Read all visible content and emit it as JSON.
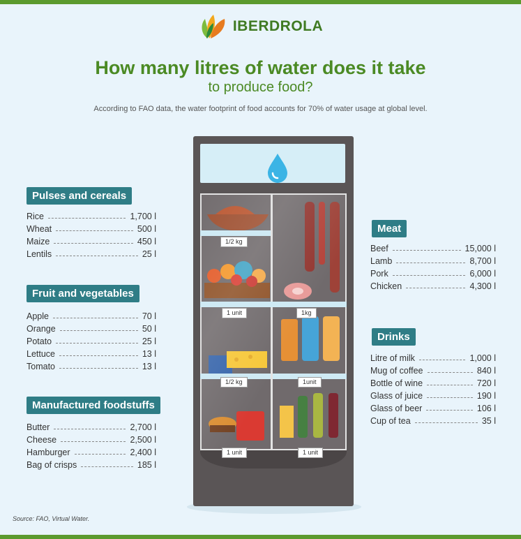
{
  "brand": {
    "name": "IBERDROLA"
  },
  "header": {
    "title": "How many litres of water does it take",
    "subtitle": "to produce food?",
    "intro": "According to FAO data, the water footprint of food accounts for 70% of water usage at global level."
  },
  "categories": {
    "pulses": {
      "title": "Pulses and cereals",
      "items": [
        {
          "label": "Rice",
          "value": "1,700 l"
        },
        {
          "label": "Wheat",
          "value": "500 l"
        },
        {
          "label": "Maize",
          "value": "450 l"
        },
        {
          "label": "Lentils",
          "value": "25 l"
        }
      ]
    },
    "fruit": {
      "title": "Fruit and vegetables",
      "items": [
        {
          "label": "Apple",
          "value": "70 l"
        },
        {
          "label": "Orange",
          "value": "50 l"
        },
        {
          "label": "Potato",
          "value": "25 l"
        },
        {
          "label": "Lettuce",
          "value": "13 l"
        },
        {
          "label": "Tomato",
          "value": "13 l"
        }
      ]
    },
    "manufactured": {
      "title": "Manufactured foodstuffs",
      "items": [
        {
          "label": "Butter",
          "value": "2,700 l"
        },
        {
          "label": "Cheese",
          "value": "2,500 l"
        },
        {
          "label": "Hamburger",
          "value": "2,400 l"
        },
        {
          "label": "Bag of crisps",
          "value": "185 l"
        }
      ]
    },
    "meat": {
      "title": "Meat",
      "items": [
        {
          "label": "Beef",
          "value": "15,000 l"
        },
        {
          "label": "Lamb",
          "value": "8,700 l"
        },
        {
          "label": "Pork",
          "value": "6,000 l"
        },
        {
          "label": "Chicken",
          "value": "4,300 l"
        }
      ]
    },
    "drinks": {
      "title": "Drinks",
      "items": [
        {
          "label": "Litre of milk",
          "value": "1,000 l"
        },
        {
          "label": "Mug of coffee",
          "value": "840 l"
        },
        {
          "label": "Bottle of wine",
          "value": "720 l"
        },
        {
          "label": "Glass of juice",
          "value": "190 l"
        },
        {
          "label": "Glass of beer",
          "value": "106 l"
        },
        {
          "label": "Cup of tea",
          "value": "35 l"
        }
      ]
    }
  },
  "fridge": {
    "tags": {
      "t1": "1/2 kg",
      "t2": "1 unit",
      "t3": "1kg",
      "t4": "1/2 kg",
      "t5": "1unit",
      "t6": "1 unit",
      "t7": "1 unit"
    }
  },
  "source": "Source: FAO, Virtual Water.",
  "colors": {
    "green": "#4b8a24",
    "teal": "#2f7d86",
    "background": "#e9f4fb",
    "fridge": "#5a5556",
    "water": "#3bb4e5"
  },
  "icons": [
    "leaf-logo-icon",
    "water-drop-icon"
  ]
}
